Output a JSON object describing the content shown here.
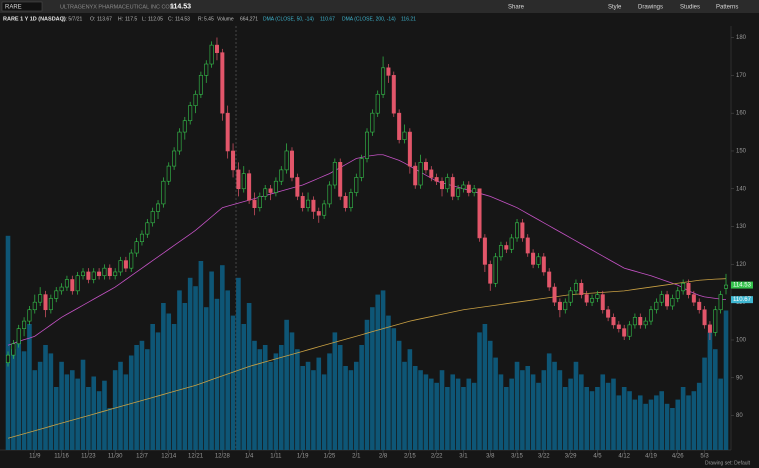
{
  "toolbar": {
    "symbol": "RARE",
    "company": "ULTRAGENYX PHARMACEUTICAL INC COM",
    "buttons": [
      "Share",
      "Style",
      "Drawings",
      "Studies",
      "Patterns"
    ]
  },
  "legend": {
    "title": "RARE 1 Y 1D (NASDAQ)",
    "date": "D: 5/7/21",
    "open": "O:",
    "high": "H:",
    "low": "L:",
    "close": "C:",
    "range_label": "R:",
    "range": 5.45,
    "volume": "Volume",
    "volume_label": "664,271"
  },
  "footer": "Drawing set: Default",
  "chart_data": {
    "type": "candlestick",
    "up_color": "#35c24c",
    "down_color": "#e2566a",
    "volume_color": "#0e5676",
    "ylim": [
      70.9,
      182
    ],
    "yticks": [
      80,
      90,
      100,
      110,
      120,
      130,
      140,
      150,
      160,
      170,
      180
    ],
    "vlim": [
      0,
      2000000
    ],
    "grid": false,
    "categories": [
      null,
      null,
      null,
      null,
      null,
      "11/9",
      null,
      null,
      null,
      null,
      "11/16",
      null,
      null,
      null,
      null,
      "11/23",
      null,
      null,
      null,
      null,
      "11/30",
      null,
      null,
      null,
      null,
      "12/7",
      null,
      null,
      null,
      null,
      "12/14",
      null,
      null,
      null,
      null,
      "12/21",
      null,
      null,
      null,
      null,
      "12/28",
      null,
      null,
      null,
      null,
      "1/4",
      null,
      null,
      null,
      null,
      "1/11",
      null,
      null,
      null,
      null,
      "1/19",
      null,
      null,
      null,
      null,
      "1/25",
      null,
      null,
      null,
      null,
      "2/1",
      null,
      null,
      null,
      null,
      "2/8",
      null,
      null,
      null,
      null,
      "2/15",
      null,
      null,
      null,
      null,
      "2/22",
      null,
      null,
      null,
      null,
      "3/1",
      null,
      null,
      null,
      null,
      "3/8",
      null,
      null,
      null,
      null,
      "3/15",
      null,
      null,
      null,
      null,
      "3/22",
      null,
      null,
      null,
      null,
      "3/29",
      null,
      null,
      null,
      null,
      "4/5",
      null,
      null,
      null,
      null,
      "4/12",
      null,
      null,
      null,
      null,
      "4/19",
      null,
      null,
      null,
      null,
      "4/26",
      null,
      null,
      null,
      null,
      "5/3",
      null,
      null,
      null,
      null
    ],
    "ohlc": [
      [
        94,
        97,
        93,
        96
      ],
      [
        96,
        100,
        95,
        99
      ],
      [
        99,
        104,
        98,
        103
      ],
      [
        103,
        106,
        101,
        105
      ],
      [
        105,
        109,
        104,
        108
      ],
      [
        108,
        112,
        107,
        110
      ],
      [
        110,
        114,
        109,
        112
      ],
      [
        112,
        113,
        106,
        108
      ],
      [
        108,
        112,
        107,
        111
      ],
      [
        111,
        114,
        110,
        113
      ],
      [
        113,
        115,
        112,
        114
      ],
      [
        114,
        117,
        113,
        116
      ],
      [
        116,
        117,
        112,
        113
      ],
      [
        113,
        118,
        112,
        117
      ],
      [
        117,
        119,
        116,
        118
      ],
      [
        118,
        119,
        115,
        116
      ],
      [
        116,
        119,
        115,
        118
      ],
      [
        118,
        119,
        116,
        117
      ],
      [
        117,
        120,
        116,
        119
      ],
      [
        119,
        120,
        116,
        117
      ],
      [
        117,
        119,
        116,
        118
      ],
      [
        118,
        122,
        117,
        121
      ],
      [
        121,
        122,
        118,
        119
      ],
      [
        119,
        124,
        118,
        123
      ],
      [
        123,
        127,
        122,
        126
      ],
      [
        126,
        129,
        125,
        128
      ],
      [
        128,
        132,
        127,
        131
      ],
      [
        131,
        135,
        130,
        134
      ],
      [
        134,
        137,
        132,
        136
      ],
      [
        136,
        143,
        135,
        142
      ],
      [
        142,
        147,
        141,
        146
      ],
      [
        146,
        151,
        145,
        150
      ],
      [
        150,
        156,
        149,
        155
      ],
      [
        155,
        159,
        153,
        158
      ],
      [
        158,
        163,
        157,
        162
      ],
      [
        162,
        166,
        160,
        165
      ],
      [
        165,
        171,
        164,
        170
      ],
      [
        170,
        174,
        168,
        173
      ],
      [
        173,
        179,
        172,
        178
      ],
      [
        178,
        180,
        174,
        176
      ],
      [
        176,
        177,
        158,
        160
      ],
      [
        160,
        162,
        148,
        150
      ],
      [
        150,
        152,
        143,
        145
      ],
      [
        145,
        147,
        138,
        140
      ],
      [
        140,
        146,
        139,
        144
      ],
      [
        144,
        145,
        136,
        137
      ],
      [
        137,
        139,
        133,
        135
      ],
      [
        135,
        139,
        134,
        138
      ],
      [
        138,
        141,
        137,
        140
      ],
      [
        140,
        141,
        137,
        139
      ],
      [
        139,
        143,
        138,
        142
      ],
      [
        142,
        146,
        141,
        145
      ],
      [
        145,
        152,
        144,
        150
      ],
      [
        150,
        151,
        142,
        143
      ],
      [
        143,
        144,
        137,
        138
      ],
      [
        138,
        139,
        134,
        135
      ],
      [
        135,
        139,
        134,
        137
      ],
      [
        137,
        138,
        132,
        134
      ],
      [
        134,
        135,
        131,
        133
      ],
      [
        133,
        137,
        132,
        136
      ],
      [
        136,
        142,
        135,
        141
      ],
      [
        141,
        148,
        140,
        147
      ],
      [
        147,
        148,
        137,
        138
      ],
      [
        138,
        139,
        134,
        135
      ],
      [
        135,
        140,
        134,
        139
      ],
      [
        139,
        144,
        138,
        143
      ],
      [
        143,
        149,
        142,
        148
      ],
      [
        148,
        156,
        147,
        155
      ],
      [
        155,
        161,
        154,
        160
      ],
      [
        160,
        166,
        159,
        165
      ],
      [
        165,
        175,
        164,
        172
      ],
      [
        172,
        173,
        168,
        170
      ],
      [
        170,
        171,
        159,
        160
      ],
      [
        160,
        161,
        152,
        153
      ],
      [
        153,
        157,
        152,
        155
      ],
      [
        155,
        156,
        144,
        146
      ],
      [
        146,
        147,
        140,
        141
      ],
      [
        141,
        149,
        140,
        147
      ],
      [
        147,
        148,
        144,
        145
      ],
      [
        145,
        146,
        142,
        143
      ],
      [
        143,
        144,
        141,
        142
      ],
      [
        142,
        143,
        138,
        140
      ],
      [
        140,
        144,
        139,
        143
      ],
      [
        143,
        144,
        137,
        138
      ],
      [
        138,
        141,
        137,
        140
      ],
      [
        140,
        142,
        139,
        141
      ],
      [
        141,
        142,
        138,
        139
      ],
      [
        139,
        141,
        138,
        140
      ],
      [
        140,
        140,
        126,
        127
      ],
      [
        127,
        128,
        118,
        120
      ],
      [
        120,
        121,
        113,
        115
      ],
      [
        115,
        123,
        114,
        122
      ],
      [
        122,
        126,
        121,
        125
      ],
      [
        125,
        126,
        123,
        124
      ],
      [
        124,
        128,
        123,
        127
      ],
      [
        127,
        132,
        126,
        131
      ],
      [
        131,
        132,
        126,
        127
      ],
      [
        127,
        128,
        122,
        123
      ],
      [
        123,
        124,
        119,
        120
      ],
      [
        120,
        123,
        119,
        122
      ],
      [
        122,
        123,
        117,
        118
      ],
      [
        118,
        119,
        113,
        114
      ],
      [
        114,
        115,
        109,
        110
      ],
      [
        110,
        111,
        106,
        108
      ],
      [
        108,
        111,
        107,
        110
      ],
      [
        110,
        114,
        109,
        113
      ],
      [
        113,
        116,
        112,
        115
      ],
      [
        115,
        116,
        111,
        112
      ],
      [
        112,
        113,
        109,
        110
      ],
      [
        110,
        112,
        109,
        111
      ],
      [
        111,
        113,
        110,
        112
      ],
      [
        112,
        113,
        107,
        108
      ],
      [
        108,
        109,
        105,
        106
      ],
      [
        106,
        107,
        103,
        104
      ],
      [
        104,
        105,
        102,
        103
      ],
      [
        103,
        104,
        100,
        101
      ],
      [
        101,
        105,
        100,
        104
      ],
      [
        104,
        107,
        103,
        106
      ],
      [
        106,
        107,
        103,
        104
      ],
      [
        104,
        106,
        103,
        105
      ],
      [
        105,
        109,
        104,
        108
      ],
      [
        108,
        111,
        107,
        110
      ],
      [
        110,
        113,
        109,
        112
      ],
      [
        112,
        113,
        108,
        109
      ],
      [
        109,
        112,
        108,
        111
      ],
      [
        111,
        114,
        110,
        113
      ],
      [
        113,
        116,
        112,
        115
      ],
      [
        115,
        116,
        111,
        112
      ],
      [
        112,
        113,
        109,
        110
      ],
      [
        110,
        111,
        107,
        108
      ],
      [
        108,
        109,
        103,
        104
      ],
      [
        104,
        105,
        100,
        102
      ],
      [
        102,
        109,
        101,
        108
      ],
      [
        108,
        113,
        107,
        112
      ],
      [
        113.67,
        117.5,
        112.05,
        114.53
      ]
    ],
    "volume": [
      1020000,
      480000,
      520000,
      470000,
      600000,
      380000,
      420000,
      500000,
      460000,
      300000,
      420000,
      360000,
      380000,
      340000,
      430000,
      300000,
      350000,
      280000,
      330000,
      200000,
      380000,
      420000,
      360000,
      450000,
      500000,
      520000,
      480000,
      600000,
      560000,
      700000,
      650000,
      600000,
      760000,
      700000,
      820000,
      780000,
      900000,
      680000,
      850000,
      720000,
      880000,
      760000,
      640000,
      820000,
      600000,
      700000,
      520000,
      480000,
      500000,
      420000,
      460000,
      500000,
      620000,
      560000,
      480000,
      400000,
      420000,
      380000,
      440000,
      360000,
      460000,
      560000,
      500000,
      400000,
      380000,
      420000,
      500000,
      620000,
      680000,
      740000,
      760000,
      640000,
      580000,
      520000,
      420000,
      480000,
      400000,
      380000,
      360000,
      340000,
      320000,
      380000,
      300000,
      360000,
      340000,
      300000,
      340000,
      320000,
      560000,
      600000,
      520000,
      440000,
      360000,
      300000,
      340000,
      420000,
      380000,
      400000,
      360000,
      320000,
      380000,
      460000,
      420000,
      380000,
      300000,
      340000,
      420000,
      360000,
      300000,
      280000,
      300000,
      360000,
      320000,
      340000,
      260000,
      300000,
      280000,
      240000,
      260000,
      220000,
      240000,
      260000,
      280000,
      220000,
      200000,
      240000,
      300000,
      260000,
      280000,
      320000,
      440000,
      560000,
      480000,
      340000,
      664271
    ],
    "series": [
      {
        "name": "DMA (CLOSE, 50, -14)",
        "color": "#c452c4",
        "label_color": "#3fb6d0",
        "values": [
          98.6,
          99.1,
          99.6,
          100.1,
          100.5,
          101,
          102,
          103,
          104,
          105,
          106,
          106.8,
          107.6,
          108.4,
          109.2,
          110,
          110.8,
          111.6,
          112.4,
          113.2,
          114,
          115,
          116,
          117,
          118,
          119,
          120,
          121,
          122,
          123,
          124,
          125,
          126,
          127,
          128,
          129,
          130.2,
          131.4,
          132.6,
          133.8,
          135,
          135.4,
          135.8,
          136.2,
          136.6,
          137,
          137.4,
          137.8,
          138.2,
          138.6,
          139,
          139.4,
          139.8,
          140.2,
          140.6,
          141,
          141.6,
          142.2,
          142.8,
          143.4,
          144,
          144.8,
          145.6,
          146.4,
          147.2,
          148,
          148.3,
          148.6,
          148.8,
          149,
          149,
          148.5,
          148,
          147.5,
          146.8,
          146,
          145.2,
          144.4,
          143.6,
          142.8,
          142,
          141.6,
          141.2,
          140.8,
          140.4,
          140,
          139.6,
          139.2,
          138.8,
          138.4,
          138,
          137.4,
          136.8,
          136.2,
          135.6,
          135,
          134.2,
          133.4,
          132.6,
          131.8,
          131,
          130.2,
          129.4,
          128.6,
          127.8,
          127,
          126.2,
          125.4,
          124.6,
          123.8,
          123,
          122.2,
          121.4,
          120.6,
          119.8,
          119,
          118.6,
          118.2,
          117.8,
          117.4,
          117,
          116.5,
          116,
          115.5,
          115,
          114.5,
          113.8,
          113,
          112.4,
          111.8,
          111.4,
          111.2,
          111,
          110.8,
          110.67
        ]
      },
      {
        "name": "DMA (CLOSE, 200, -14)",
        "color": "#c9a043",
        "label_color": "#3fb6d0",
        "values": [
          74,
          74.4,
          74.8,
          75.2,
          75.6,
          76,
          76.4,
          76.8,
          77.2,
          77.6,
          78,
          78.4,
          78.8,
          79.2,
          79.6,
          80,
          80.4,
          80.8,
          81.2,
          81.6,
          82,
          82.4,
          82.8,
          83.2,
          83.6,
          84,
          84.4,
          84.8,
          85.2,
          85.6,
          86,
          86.4,
          86.8,
          87.2,
          87.6,
          88,
          88.5,
          89,
          89.5,
          90,
          90.5,
          91,
          91.5,
          92,
          92.5,
          93,
          93.4,
          93.8,
          94.2,
          94.6,
          95,
          95.4,
          95.8,
          96.2,
          96.6,
          97,
          97.4,
          97.8,
          98.2,
          98.6,
          99,
          99.4,
          99.8,
          100.2,
          100.6,
          101,
          101.4,
          101.8,
          102.2,
          102.6,
          103,
          103.4,
          103.8,
          104.2,
          104.6,
          105,
          105.3,
          105.6,
          105.9,
          106.2,
          106.5,
          106.8,
          107.1,
          107.4,
          107.7,
          108,
          108.2,
          108.4,
          108.6,
          108.8,
          109,
          109.2,
          109.4,
          109.6,
          109.8,
          110,
          110.2,
          110.4,
          110.6,
          110.8,
          111,
          111.2,
          111.4,
          111.6,
          111.8,
          112,
          112.1,
          112.2,
          112.3,
          112.4,
          112.5,
          112.6,
          112.7,
          112.8,
          112.9,
          113,
          113.2,
          113.4,
          113.6,
          113.8,
          114,
          114.2,
          114.4,
          114.6,
          114.8,
          115,
          115.2,
          115.4,
          115.6,
          115.8,
          115.9,
          116,
          116.1,
          116.15,
          116.21
        ]
      }
    ]
  }
}
